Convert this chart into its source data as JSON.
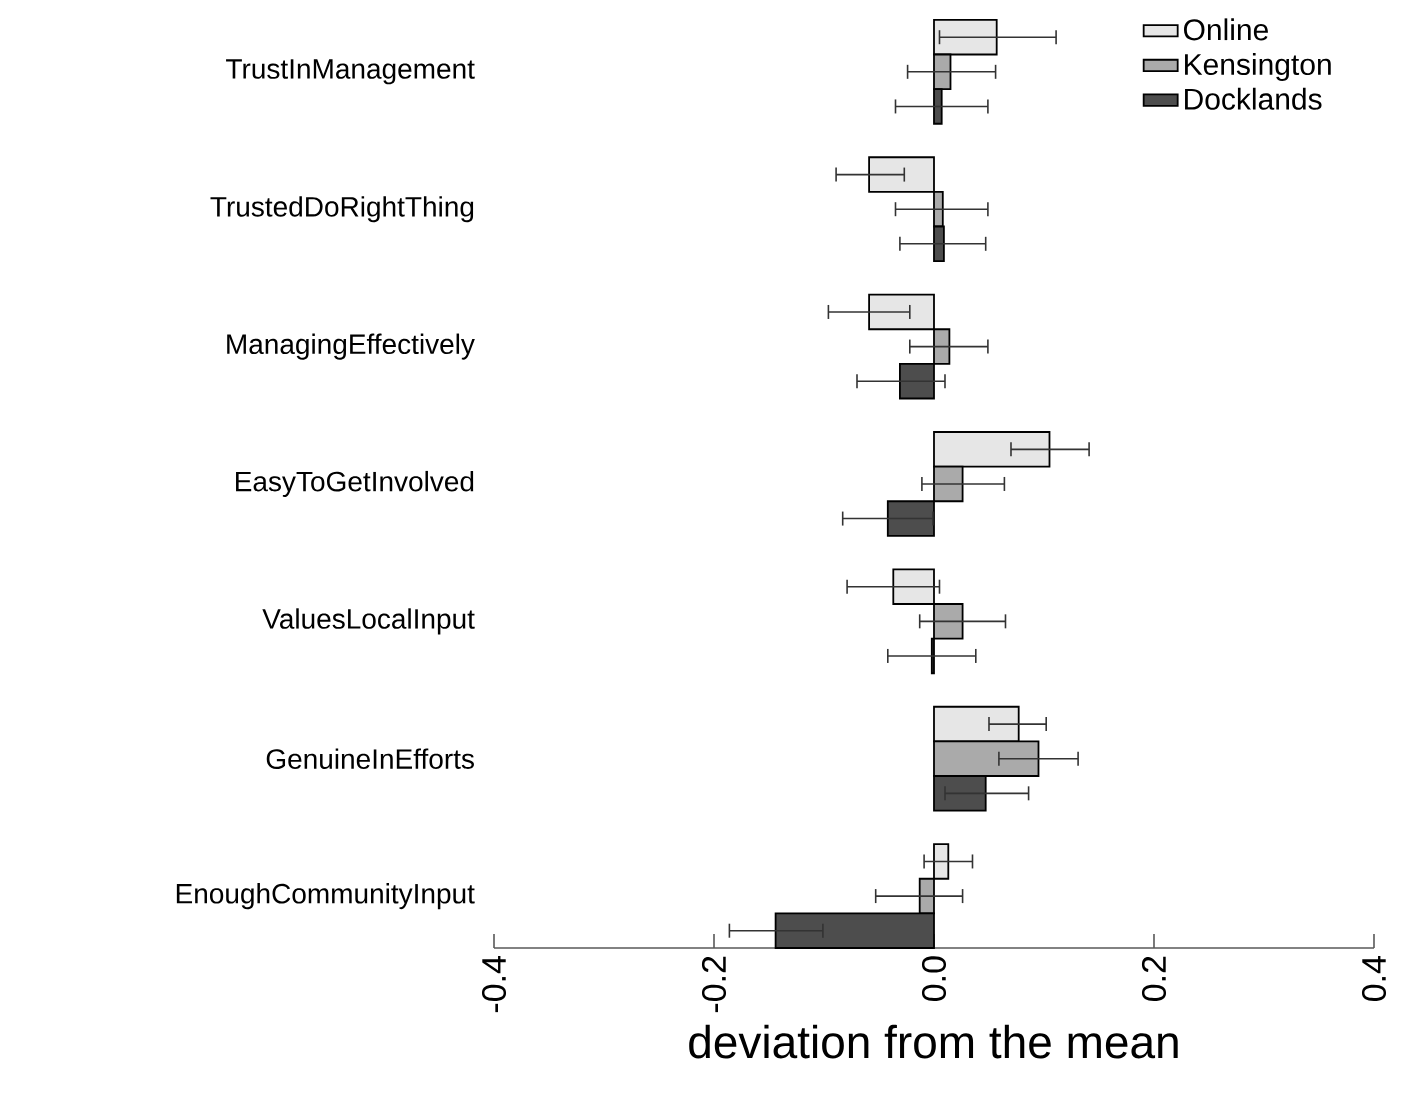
{
  "chart_data": {
    "type": "bar",
    "orientation": "horizontal",
    "xlabel": "deviation from the mean",
    "xlim": [
      -0.4,
      0.4
    ],
    "xticks": [
      -0.4,
      -0.2,
      {
        "value": 0,
        "label": "0.0"
      },
      0.2,
      0.4
    ],
    "legend": "top right",
    "grid": false,
    "categories": [
      "TrustInManagement",
      "TrustedDoRightThing",
      "ManagingEffectively",
      "EasyToGetInvolved",
      "ValuesLocalInput",
      "GenuineInEfforts",
      "EnoughCommunityInput"
    ],
    "series": [
      {
        "name": "Online",
        "color": "#e6e6e6",
        "values": [
          0.057,
          -0.059,
          -0.059,
          0.105,
          -0.037,
          0.077,
          0.013
        ],
        "errors": [
          [
            0.005,
            0.111
          ],
          [
            -0.089,
            -0.027
          ],
          [
            -0.096,
            -0.022
          ],
          [
            0.07,
            0.141
          ],
          [
            -0.079,
            0.005
          ],
          [
            0.05,
            0.102
          ],
          [
            -0.009,
            0.035
          ]
        ]
      },
      {
        "name": "Kensington",
        "color": "#aaaaaa",
        "values": [
          0.015,
          0.008,
          0.014,
          0.026,
          0.026,
          0.095,
          -0.013
        ],
        "errors": [
          [
            -0.024,
            0.056
          ],
          [
            -0.035,
            0.049
          ],
          [
            -0.022,
            0.049
          ],
          [
            -0.011,
            0.064
          ],
          [
            -0.013,
            0.065
          ],
          [
            0.059,
            0.131
          ],
          [
            -0.053,
            0.026
          ]
        ]
      },
      {
        "name": "Docklands",
        "color": "#4d4d4d",
        "values": [
          0.007,
          0.009,
          -0.031,
          -0.042,
          -0.002,
          0.047,
          -0.144
        ],
        "errors": [
          [
            -0.035,
            0.049
          ],
          [
            -0.031,
            0.047
          ],
          [
            -0.07,
            0.01
          ],
          [
            -0.083,
            -0.001
          ],
          [
            -0.042,
            0.038
          ],
          [
            0.01,
            0.086
          ],
          [
            -0.186,
            -0.101
          ]
        ]
      }
    ]
  }
}
